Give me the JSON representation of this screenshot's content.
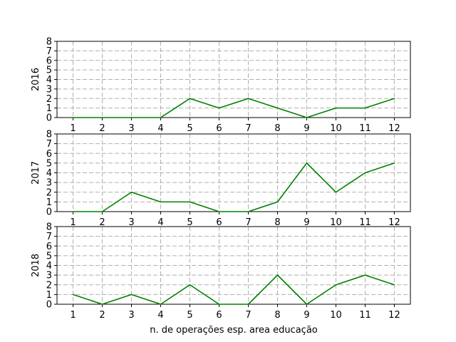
{
  "chart_data": [
    {
      "type": "line",
      "ylabel": "2016",
      "xlabel": "",
      "x": [
        1,
        2,
        3,
        4,
        5,
        6,
        7,
        8,
        9,
        10,
        11,
        12
      ],
      "series": [
        {
          "values": [
            0,
            0,
            0,
            0,
            2,
            1,
            2,
            1,
            0,
            1,
            1,
            2
          ]
        }
      ],
      "ylim": [
        0,
        8
      ],
      "yticks": [
        0,
        1,
        2,
        3,
        4,
        5,
        6,
        7,
        8
      ],
      "grid": true,
      "line_color": "#008000",
      "grid_color": "#b0b0b0"
    },
    {
      "type": "line",
      "ylabel": "2017",
      "xlabel": "",
      "x": [
        1,
        2,
        3,
        4,
        5,
        6,
        7,
        8,
        9,
        10,
        11,
        12
      ],
      "series": [
        {
          "values": [
            0,
            0,
            2,
            1,
            1,
            0,
            0,
            1,
            5,
            2,
            4,
            5
          ]
        }
      ],
      "ylim": [
        0,
        8
      ],
      "yticks": [
        0,
        1,
        2,
        3,
        4,
        5,
        6,
        7,
        8
      ],
      "grid": true,
      "line_color": "#008000",
      "grid_color": "#b0b0b0"
    },
    {
      "type": "line",
      "ylabel": "2018",
      "xlabel": "n. de operações esp. area educação",
      "x": [
        1,
        2,
        3,
        4,
        5,
        6,
        7,
        8,
        9,
        10,
        11,
        12
      ],
      "series": [
        {
          "values": [
            1,
            0,
            1,
            0,
            2,
            0,
            0,
            3,
            0,
            2,
            3,
            2
          ]
        }
      ],
      "ylim": [
        0,
        8
      ],
      "yticks": [
        0,
        1,
        2,
        3,
        4,
        5,
        6,
        7,
        8
      ],
      "grid": true,
      "line_color": "#008000",
      "grid_color": "#b0b0b0"
    }
  ]
}
